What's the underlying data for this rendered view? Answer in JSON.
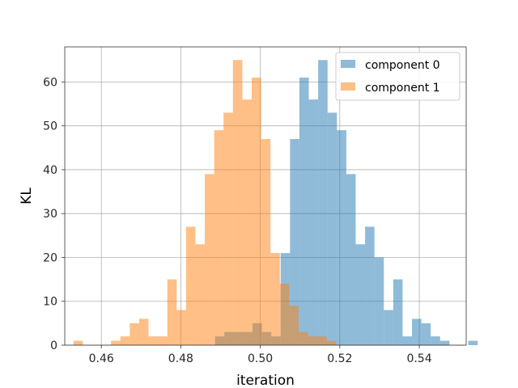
{
  "chart_data": {
    "type": "histogram",
    "title": "",
    "xlabel": "iteration",
    "ylabel": "KL",
    "xlim": [
      0.4508,
      0.5518
    ],
    "ylim": [
      0,
      68
    ],
    "xticks": [
      "0.46",
      "0.48",
      "0.50",
      "0.52",
      "0.54"
    ],
    "xtick_values": [
      0.46,
      0.48,
      0.5,
      0.52,
      0.54
    ],
    "yticks": [
      "0",
      "10",
      "20",
      "30",
      "40",
      "50",
      "60"
    ],
    "ytick_values": [
      0,
      10,
      20,
      30,
      40,
      50,
      60
    ],
    "grid": true,
    "legend_position": "upper right",
    "series": [
      {
        "name": "component 0",
        "color": "#1f77b4",
        "alpha": 0.5,
        "bin_start": 0.4886,
        "bin_width": 0.00236,
        "counts": [
          2,
          3,
          3,
          3,
          5,
          3,
          2,
          21,
          47,
          61,
          56,
          65,
          53,
          49,
          39,
          23,
          27,
          20,
          8,
          15,
          2,
          6,
          5,
          2,
          1,
          0,
          0,
          1
        ]
      },
      {
        "name": "component 1",
        "color": "#ff7f0e",
        "alpha": 0.5,
        "bin_start": 0.453,
        "bin_width": 0.00236,
        "counts": [
          1,
          0,
          0,
          0,
          1,
          2,
          5,
          6,
          2,
          2,
          15,
          8,
          27,
          23,
          39,
          49,
          53,
          65,
          56,
          61,
          47,
          21,
          14,
          9,
          3,
          2,
          2,
          1
        ]
      }
    ]
  }
}
